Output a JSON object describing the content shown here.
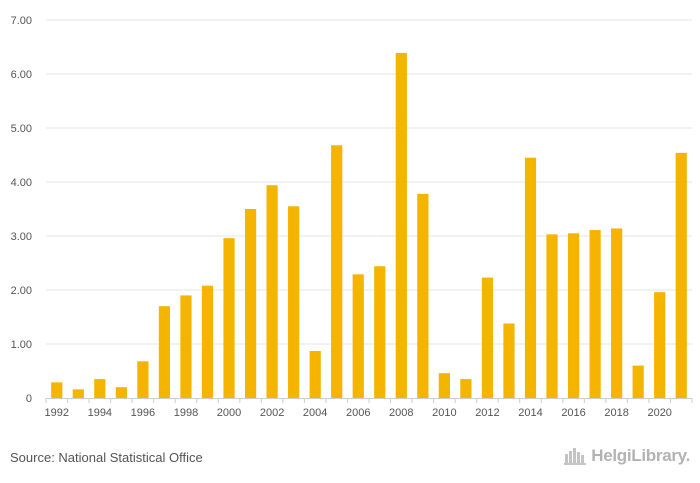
{
  "chart_data": {
    "type": "bar",
    "title": "",
    "xlabel": "",
    "ylabel": "",
    "ylim": [
      0,
      7
    ],
    "y_ticks": [
      "0",
      "1.00",
      "2.00",
      "3.00",
      "4.00",
      "5.00",
      "6.00",
      "7.00"
    ],
    "y_tick_values": [
      0,
      1,
      2,
      3,
      4,
      5,
      6,
      7
    ],
    "x_tick_labels": [
      "1992",
      "1994",
      "1996",
      "1998",
      "2000",
      "2002",
      "2004",
      "2006",
      "2008",
      "2010",
      "2012",
      "2014",
      "2016",
      "2018",
      "2020"
    ],
    "categories": [
      "1992",
      "1993",
      "1994",
      "1995",
      "1996",
      "1997",
      "1998",
      "1999",
      "2000",
      "2001",
      "2002",
      "2003",
      "2004",
      "2005",
      "2006",
      "2007",
      "2008",
      "2009",
      "2010",
      "2011",
      "2012",
      "2013",
      "2014",
      "2015",
      "2016",
      "2017",
      "2018",
      "2019",
      "2020",
      "2021"
    ],
    "values": [
      0.29,
      0.16,
      0.35,
      0.2,
      0.68,
      1.7,
      1.9,
      2.08,
      2.96,
      3.5,
      3.94,
      3.55,
      0.87,
      4.68,
      2.29,
      2.44,
      6.39,
      3.78,
      0.46,
      0.35,
      2.23,
      1.38,
      4.45,
      3.03,
      3.05,
      3.11,
      3.14,
      0.6,
      1.96,
      4.54
    ],
    "bar_color": "#f5b400",
    "grid": true
  },
  "footer": {
    "source": "Source: National Statistical Office",
    "logo_text": "HelgiLibrary."
  }
}
